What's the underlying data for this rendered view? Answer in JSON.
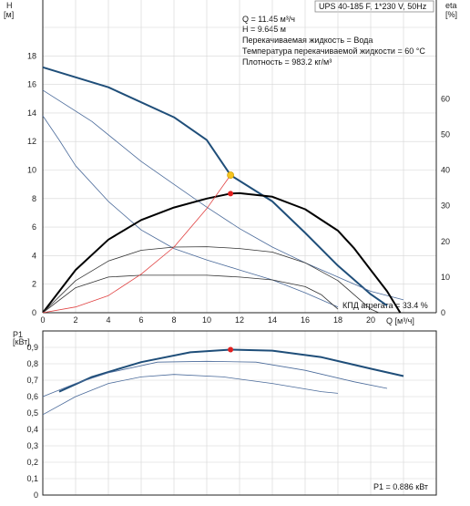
{
  "header": {
    "model": "UPS 40-185 F, 1*230 V, 50Hz"
  },
  "info_lines": [
    "Q = 11.45 м³/ч",
    "H = 9.645 м",
    "Перекачиваемая жидкость = Вода",
    "Температура перекачиваемой жидкости = 60 °C",
    "Плотность = 983.2 кг/м³"
  ],
  "chart_data": [
    {
      "type": "line",
      "name": "head-efficiency",
      "y_axis": {
        "label_top": "H",
        "unit": "[м]",
        "ylim": [
          0,
          20
        ],
        "ticks": [
          "0",
          "2",
          "4",
          "6",
          "8",
          "10",
          "12",
          "14",
          "16",
          "18"
        ],
        "tick_values": [
          0,
          2,
          4,
          6,
          8,
          10,
          12,
          14,
          16,
          18
        ]
      },
      "y2_axis": {
        "label_top": "eta",
        "unit": "[%]",
        "ylim": [
          0,
          80
        ],
        "ticks": [
          "0",
          "10",
          "20",
          "30",
          "40",
          "50",
          "60"
        ],
        "tick_values": [
          0,
          10,
          20,
          30,
          40,
          50,
          60
        ]
      },
      "x_axis": {
        "label": "Q [м³/ч]",
        "xlim": [
          0,
          24
        ],
        "ticks": [
          "0",
          "2",
          "4",
          "6",
          "8",
          "10",
          "12",
          "14",
          "16",
          "18",
          "20"
        ],
        "tick_values": [
          0,
          2,
          4,
          6,
          8,
          10,
          12,
          14,
          16,
          18,
          20
        ]
      },
      "grid": true,
      "series": [
        {
          "role": "head-speed-3",
          "color": "#1f4e79",
          "points": [
            [
              0,
              17.2
            ],
            [
              4,
              15.8
            ],
            [
              8,
              13.7
            ],
            [
              10,
              12.1
            ],
            [
              11.45,
              9.645
            ],
            [
              14,
              7.8
            ],
            [
              16,
              5.6
            ],
            [
              18,
              3.3
            ],
            [
              20,
              1.3
            ],
            [
              21,
              0.5
            ]
          ]
        },
        {
          "role": "head-speed-2",
          "color": "#4a6a9a",
          "points": [
            [
              0,
              15.6
            ],
            [
              3,
              13.4
            ],
            [
              6,
              10.6
            ],
            [
              8,
              9.0
            ],
            [
              10,
              7.4
            ],
            [
              12,
              5.9
            ],
            [
              14,
              4.6
            ],
            [
              16,
              3.5
            ],
            [
              18,
              2.5
            ],
            [
              20,
              1.5
            ],
            [
              22,
              0.9
            ]
          ]
        },
        {
          "role": "head-speed-1",
          "color": "#4a6a9a",
          "points": [
            [
              0,
              13.8
            ],
            [
              1,
              12.1
            ],
            [
              2,
              10.3
            ],
            [
              4,
              7.8
            ],
            [
              6,
              5.8
            ],
            [
              8,
              4.5
            ],
            [
              10,
              3.7
            ],
            [
              12,
              3.0
            ],
            [
              14,
              2.3
            ],
            [
              16,
              1.4
            ],
            [
              18,
              0.4
            ]
          ]
        },
        {
          "role": "efficiency-speed-3",
          "color": "#000000",
          "points": [
            [
              0,
              0
            ],
            [
              2,
              12
            ],
            [
              4,
              20.5
            ],
            [
              6,
              26
            ],
            [
              8,
              29.5
            ],
            [
              10,
              32
            ],
            [
              11.45,
              33.4
            ],
            [
              12,
              33.5
            ],
            [
              14,
              32.5
            ],
            [
              16,
              29
            ],
            [
              18,
              23
            ],
            [
              19,
              18
            ],
            [
              20,
              12
            ],
            [
              21,
              6
            ],
            [
              21.8,
              0
            ]
          ]
        },
        {
          "role": "efficiency-speed-2",
          "color": "#333333",
          "points": [
            [
              0,
              0
            ],
            [
              2,
              9
            ],
            [
              4,
              14.5
            ],
            [
              6,
              17.5
            ],
            [
              8,
              18.4
            ],
            [
              10,
              18.5
            ],
            [
              12,
              18
            ],
            [
              14,
              17
            ],
            [
              16,
              14
            ],
            [
              18,
              9
            ],
            [
              19,
              5
            ],
            [
              20,
              1
            ],
            [
              20.5,
              0
            ]
          ]
        },
        {
          "role": "efficiency-speed-1",
          "color": "#333333",
          "points": [
            [
              0,
              0
            ],
            [
              2,
              7
            ],
            [
              4,
              10
            ],
            [
              6,
              10.5
            ],
            [
              8,
              10.5
            ],
            [
              10,
              10.5
            ],
            [
              12,
              10
            ],
            [
              14,
              9.2
            ],
            [
              16,
              7.3
            ],
            [
              17,
              5
            ],
            [
              18,
              1
            ]
          ]
        },
        {
          "role": "system-curve",
          "color": "#e04040",
          "points": [
            [
              0,
              0
            ],
            [
              2,
              0.4
            ],
            [
              4,
              1.2
            ],
            [
              6,
              2.7
            ],
            [
              8,
              4.6
            ],
            [
              10,
              7.3
            ],
            [
              11.45,
              9.645
            ]
          ]
        }
      ],
      "operating_points": [
        {
          "x": 11.45,
          "y": 9.645,
          "color": "#f5c31d"
        },
        {
          "x": 11.45,
          "y_eta": 33.4,
          "color": "#e02020"
        }
      ],
      "annotations": [
        "КПД агрегата = 33.4 %"
      ]
    },
    {
      "type": "line",
      "name": "power",
      "y_axis": {
        "label_top": "P1",
        "unit": "[кВт]",
        "ylim": [
          0,
          1.0
        ],
        "ticks": [
          "0",
          "0,1",
          "0,2",
          "0,3",
          "0,4",
          "0,5",
          "0,6",
          "0,7",
          "0,8",
          "0,9"
        ],
        "tick_values": [
          0,
          0.1,
          0.2,
          0.3,
          0.4,
          0.5,
          0.6,
          0.7,
          0.8,
          0.9
        ]
      },
      "x_axis": {
        "xlim": [
          0,
          24
        ]
      },
      "grid": true,
      "series": [
        {
          "role": "power-speed-3",
          "color": "#1f4e79",
          "points": [
            [
              1,
              0.63
            ],
            [
              3,
              0.72
            ],
            [
              6,
              0.81
            ],
            [
              9,
              0.87
            ],
            [
              11.45,
              0.886
            ],
            [
              14,
              0.88
            ],
            [
              17,
              0.84
            ],
            [
              20,
              0.77
            ],
            [
              22,
              0.725
            ]
          ]
        },
        {
          "role": "power-speed-2",
          "color": "#4a6a9a",
          "points": [
            [
              0,
              0.6
            ],
            [
              2,
              0.68
            ],
            [
              4,
              0.745
            ],
            [
              7,
              0.81
            ],
            [
              10,
              0.815
            ],
            [
              13,
              0.81
            ],
            [
              16,
              0.76
            ],
            [
              19,
              0.69
            ],
            [
              21,
              0.65
            ]
          ]
        },
        {
          "role": "power-speed-1",
          "color": "#4a6a9a",
          "points": [
            [
              0,
              0.49
            ],
            [
              2,
              0.6
            ],
            [
              4,
              0.68
            ],
            [
              6,
              0.72
            ],
            [
              8,
              0.735
            ],
            [
              11,
              0.72
            ],
            [
              14,
              0.68
            ],
            [
              17,
              0.63
            ],
            [
              18,
              0.62
            ]
          ]
        }
      ],
      "operating_points": [
        {
          "x": 11.45,
          "y": 0.886,
          "color": "#e02020"
        }
      ],
      "annotations": [
        "P1 = 0.886 кВт"
      ]
    }
  ]
}
